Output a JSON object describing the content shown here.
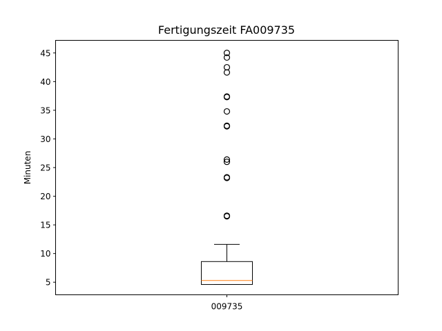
{
  "chart_data": {
    "type": "boxplot",
    "title": "Fertigungszeit FA009735",
    "xlabel": "",
    "ylabel": "Minuten",
    "ylim": [
      2.8,
      47.2
    ],
    "yticks": [
      5,
      10,
      15,
      20,
      25,
      30,
      35,
      40,
      45
    ],
    "grid": false,
    "categories": [
      "009735"
    ],
    "boxes": [
      {
        "category": "009735",
        "whisker_low": 4.6,
        "q1": 4.6,
        "median": 5.3,
        "q3": 8.6,
        "whisker_high": 11.6,
        "outliers": [
          16.5,
          16.6,
          23.2,
          23.3,
          26.0,
          26.4,
          32.2,
          32.3,
          34.8,
          37.3,
          37.4,
          41.6,
          42.5,
          44.2,
          45.0
        ]
      }
    ],
    "colors": {
      "box": "#000000",
      "median": "#ff7f0e",
      "outlier": "#000000"
    }
  }
}
